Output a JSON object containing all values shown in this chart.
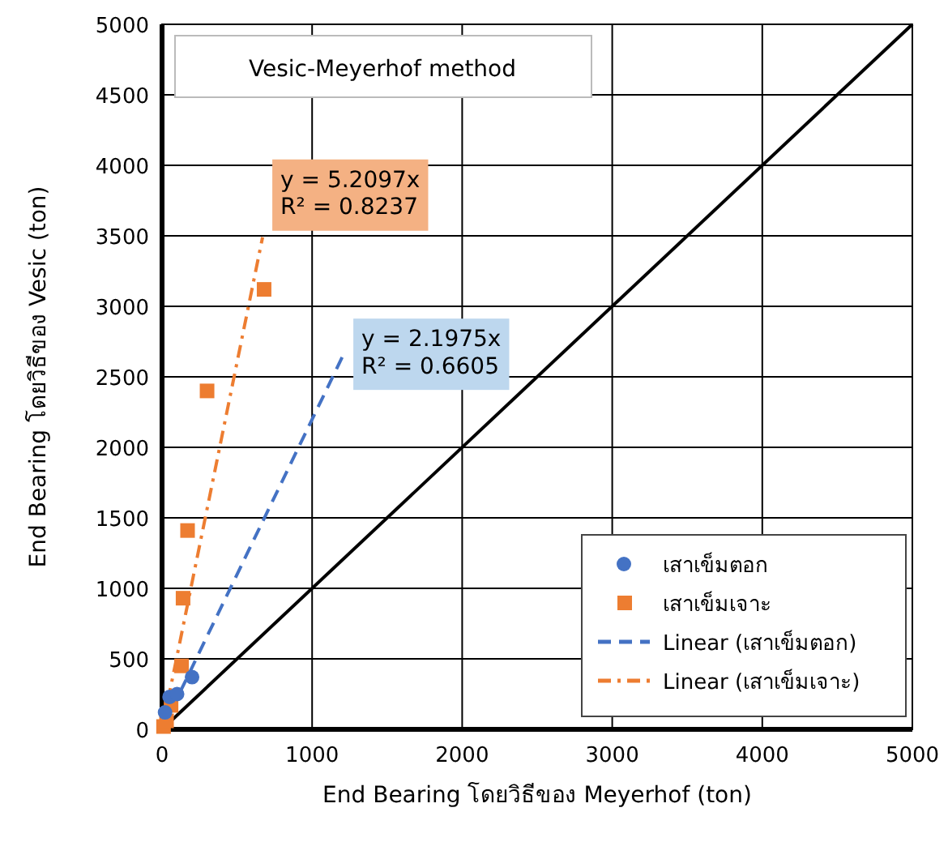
{
  "chart_data": {
    "type": "scatter",
    "title": "Vesic-Meyerhof method",
    "xlabel": "End Bearing โดยวิธีของ Meyerhof (ton)",
    "ylabel": "End Bearing โดยวิธีของ Vesic (ton)",
    "xlim": [
      0,
      5000
    ],
    "xticks": [
      0,
      1000,
      2000,
      3000,
      4000,
      5000
    ],
    "ylim": [
      0,
      5000
    ],
    "yticks": [
      0,
      500,
      1000,
      1500,
      2000,
      2500,
      3000,
      3500,
      4000,
      4500,
      5000
    ],
    "grid": true,
    "legend": "bottom right",
    "series": [
      {
        "name": "เสาเข็มตอก",
        "marker": "circle",
        "color": "#4472c4",
        "x": [
          20,
          50,
          100,
          200
        ],
        "values": [
          120,
          230,
          250,
          370
        ]
      },
      {
        "name": "เสาเข็มเจาะ",
        "marker": "square",
        "color": "#ed7d31",
        "x": [
          10,
          30,
          60,
          130,
          140,
          170,
          300,
          680
        ],
        "values": [
          20,
          60,
          170,
          450,
          930,
          1410,
          2400,
          3120
        ]
      },
      {
        "name": "Linear (เสาเข็มตอก)",
        "type": "line",
        "line_style": "dashed",
        "color": "#4472c4",
        "x": [
          0,
          1210
        ],
        "values": [
          0,
          2660
        ]
      },
      {
        "name": "Linear (เสาเข็มเจาะ)",
        "type": "line",
        "line_style": "dashdot",
        "color": "#ed7d31",
        "x": [
          0,
          670
        ],
        "values": [
          0,
          3490
        ]
      },
      {
        "type": "line",
        "line_style": "solid",
        "color": "#000000",
        "x": [
          0,
          5000
        ],
        "values": [
          0,
          5000
        ]
      }
    ],
    "annotations": [
      {
        "text": "y = 2.1975x\nR² = 0.6605",
        "x": 1210,
        "y": 2660
      },
      {
        "text": "y = 5.2097x\nR² = 0.8237",
        "x": 670,
        "y": 3490
      }
    ]
  }
}
